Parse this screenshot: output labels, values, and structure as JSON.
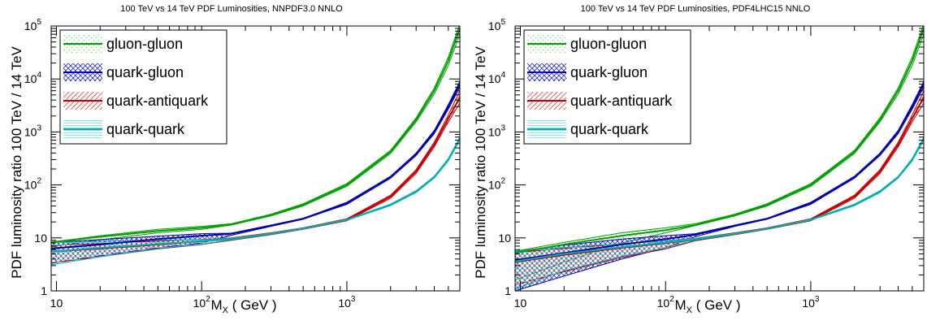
{
  "colors": {
    "gluon_gluon": "#00a000",
    "quark_gluon": "#0000b0",
    "quark_antiquark": "#c00000",
    "quark_quark": "#00b0b0",
    "band_gg": "#88d888",
    "band_qg": "#3333cc",
    "band_qqbar": "#dd5555",
    "band_qq": "#66e0e0"
  },
  "chart_data": [
    {
      "type": "line",
      "title": "100 TeV vs 14 TeV PDF Luminosities, NNPDF3.0 NNLO",
      "xlabel": "M",
      "xlabel_sub": "X",
      "xlabel_unit": " ( GeV )",
      "ylabel": "PDF luminosity ratio 100 TeV / 14 TeV",
      "xscale": "log",
      "yscale": "log",
      "xlim": [
        9.2,
        6000
      ],
      "ylim": [
        1,
        100000
      ],
      "grid": false,
      "legend_position": "top-left",
      "x_ticks": [
        {
          "value": 10,
          "base": "10",
          "exp": ""
        },
        {
          "value": 100,
          "base": "10",
          "exp": "2"
        },
        {
          "value": 1000,
          "base": "10",
          "exp": "3"
        }
      ],
      "y_ticks": [
        {
          "value": 1,
          "base": "1",
          "exp": ""
        },
        {
          "value": 10,
          "base": "10",
          "exp": ""
        },
        {
          "value": 100,
          "base": "10",
          "exp": "2"
        },
        {
          "value": 1000,
          "base": "10",
          "exp": "3"
        },
        {
          "value": 10000,
          "base": "10",
          "exp": "4"
        },
        {
          "value": 100000,
          "base": "10",
          "exp": "5"
        }
      ],
      "x": [
        9.2,
        20,
        50,
        100,
        160,
        300,
        500,
        1000,
        2000,
        3000,
        4000,
        5000,
        6000
      ],
      "series": [
        {
          "name": "gluon-gluon",
          "key": "gg",
          "central": [
            8.3,
            10.5,
            13.5,
            15.5,
            18,
            27,
            42,
            100,
            420,
            1700,
            6000,
            22000,
            90000
          ],
          "lower": [
            6.8,
            9.2,
            12.5,
            14.5,
            17.5,
            26,
            40,
            94,
            390,
            1550,
            5200,
            18000,
            70000
          ],
          "upper": [
            8.3,
            11,
            14.5,
            16.5,
            18.5,
            28,
            44,
            106,
            450,
            1850,
            6800,
            26000,
            110000
          ]
        },
        {
          "name": "quark-gluon",
          "key": "qg",
          "central": [
            6.3,
            7.5,
            9.5,
            11,
            12,
            17,
            23,
            45,
            140,
            380,
            1000,
            3000,
            8000
          ],
          "lower": [
            3.3,
            4.6,
            6.5,
            8,
            11.2,
            16.5,
            22.5,
            43,
            134,
            360,
            930,
            2700,
            7000
          ],
          "upper": [
            8.2,
            9.3,
            10.8,
            12,
            12.3,
            17.5,
            23.5,
            47,
            146,
            400,
            1070,
            3300,
            9000
          ]
        },
        {
          "name": "quark-antiquark",
          "key": "qqbar",
          "central": [
            5.5,
            6.3,
            7.5,
            8.7,
            9.5,
            12,
            15,
            22,
            60,
            180,
            580,
            1800,
            4500
          ],
          "lower": [
            3.4,
            4.4,
            6.2,
            7.5,
            9,
            11.5,
            14.5,
            21,
            56,
            165,
            520,
            1550,
            3500
          ],
          "upper": [
            7.3,
            7.8,
            8.7,
            9.3,
            10,
            12.5,
            15.5,
            23,
            64,
            195,
            640,
            2100,
            6000
          ]
        },
        {
          "name": "quark-quark",
          "key": "qq",
          "central": [
            5.5,
            6.5,
            7.7,
            8.7,
            9.5,
            12,
            15,
            22,
            42,
            75,
            140,
            300,
            750
          ],
          "lower": [
            3.1,
            4.4,
            6.3,
            7.6,
            9.2,
            11.7,
            14.7,
            21.5,
            40.5,
            72,
            135,
            285,
            700
          ],
          "upper": [
            8.2,
            8.6,
            9,
            9.4,
            9.9,
            12.3,
            15.3,
            22.5,
            43.5,
            78,
            146,
            315,
            800
          ]
        }
      ]
    },
    {
      "type": "line",
      "title": "100 TeV vs 14 TeV PDF Luminosities, PDF4LHC15 NNLO",
      "xlabel": "M",
      "xlabel_sub": "X",
      "xlabel_unit": " ( GeV )",
      "ylabel": "PDF luminosity ratio 100 TeV / 14 TeV",
      "xscale": "log",
      "yscale": "log",
      "xlim": [
        9.2,
        6000
      ],
      "ylim": [
        1,
        100000
      ],
      "grid": false,
      "legend_position": "top-left",
      "x_ticks": [
        {
          "value": 10,
          "base": "10",
          "exp": ""
        },
        {
          "value": 100,
          "base": "10",
          "exp": "2"
        },
        {
          "value": 1000,
          "base": "10",
          "exp": "3"
        }
      ],
      "y_ticks": [
        {
          "value": 1,
          "base": "1",
          "exp": ""
        },
        {
          "value": 10,
          "base": "10",
          "exp": ""
        },
        {
          "value": 100,
          "base": "10",
          "exp": "2"
        },
        {
          "value": 1000,
          "base": "10",
          "exp": "3"
        },
        {
          "value": 10000,
          "base": "10",
          "exp": "4"
        },
        {
          "value": 100000,
          "base": "10",
          "exp": "5"
        }
      ],
      "x": [
        9.2,
        20,
        50,
        100,
        160,
        300,
        500,
        1000,
        2000,
        3000,
        4000,
        5000,
        6000
      ],
      "series": [
        {
          "name": "gluon-gluon",
          "key": "gg",
          "central": [
            5.2,
            7.5,
            11,
            14,
            17.5,
            27,
            42,
            100,
            420,
            1700,
            6000,
            22000,
            90000
          ],
          "lower": [
            1.6,
            3.5,
            8,
            12.5,
            17,
            26,
            40,
            94,
            390,
            1550,
            5200,
            18000,
            70000
          ],
          "upper": [
            5.6,
            8.2,
            12.5,
            15.5,
            18.5,
            28,
            44,
            106,
            450,
            1850,
            6800,
            26000,
            110000
          ]
        },
        {
          "name": "quark-gluon",
          "key": "qg",
          "central": [
            3.8,
            5.2,
            7.5,
            9.5,
            11.5,
            17,
            23,
            45,
            140,
            380,
            1000,
            3000,
            8000
          ],
          "lower": [
            1,
            1.9,
            4,
            6.5,
            10.5,
            16.5,
            22.5,
            43,
            134,
            360,
            930,
            2700,
            7000
          ],
          "upper": [
            5.5,
            7.3,
            9.5,
            11,
            12,
            17.5,
            23.5,
            47,
            146,
            400,
            1070,
            3300,
            9000
          ]
        },
        {
          "name": "quark-antiquark",
          "key": "qqbar",
          "central": [
            3.5,
            4.8,
            6.5,
            8,
            9.3,
            12,
            15,
            22,
            60,
            180,
            580,
            1800,
            4500
          ],
          "lower": [
            1.3,
            2.3,
            4.3,
            6.2,
            8.8,
            11.5,
            14.5,
            21,
            56,
            165,
            520,
            1550,
            3500
          ],
          "upper": [
            5.3,
            6.3,
            7.7,
            8.8,
            9.8,
            12.5,
            15.5,
            23,
            64,
            195,
            640,
            2100,
            6000
          ]
        },
        {
          "name": "quark-quark",
          "key": "qq",
          "central": [
            3.6,
            5,
            6.7,
            8.2,
            9.4,
            12,
            15,
            22,
            42,
            75,
            140,
            300,
            750
          ],
          "lower": [
            1.1,
            2.4,
            4.5,
            6.5,
            9,
            11.7,
            14.7,
            21.5,
            40.5,
            72,
            135,
            285,
            700
          ],
          "upper": [
            5.6,
            6.6,
            7.8,
            8.8,
            9.8,
            12.3,
            15.3,
            22.5,
            43.5,
            78,
            146,
            315,
            800
          ]
        }
      ]
    }
  ]
}
